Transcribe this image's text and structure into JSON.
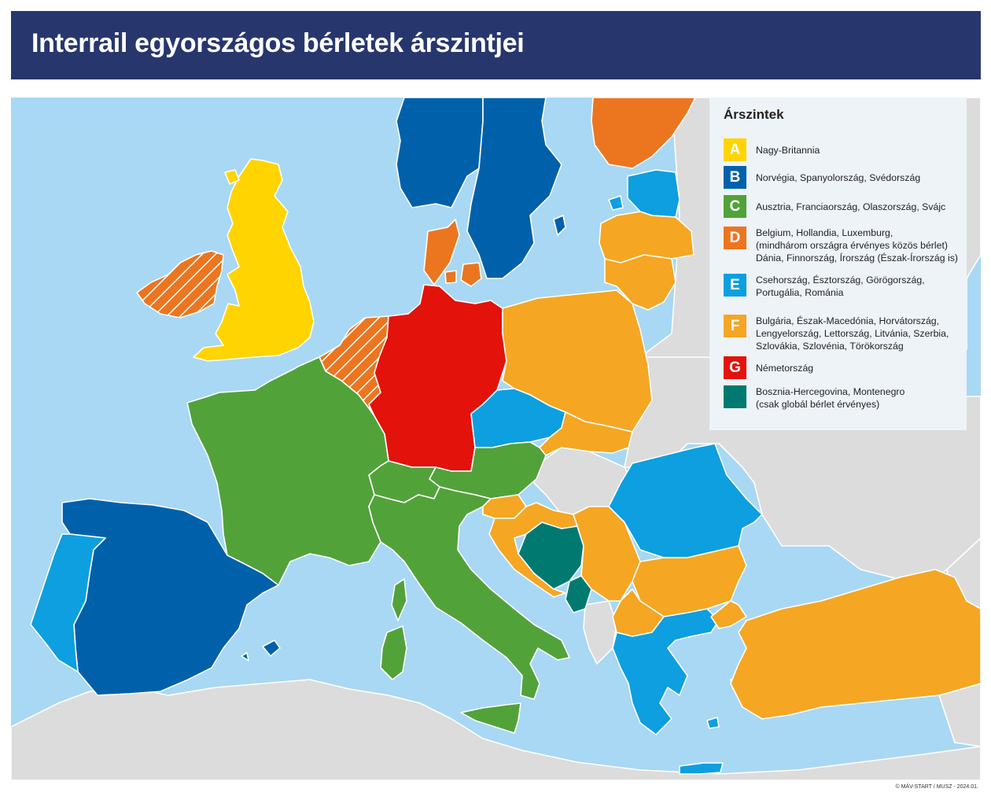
{
  "title": "Interrail egyországos bérletek árszintjei",
  "colors": {
    "sea": "#a8d8f4",
    "land_other": "#dcdcdc",
    "title_bg": "#27376e",
    "A": "#ffd400",
    "B": "#0061aa",
    "C": "#52a23a",
    "D": "#ec7520",
    "E": "#0d9fdf",
    "F": "#f5a623",
    "G": "#e3120b",
    "H": "#007a70"
  },
  "legend": {
    "heading": "Árszintek",
    "items": [
      {
        "code": "A",
        "lines": [
          "Nagy-Britannia"
        ]
      },
      {
        "code": "B",
        "lines": [
          "Norvégia, Spanyolország, Svédország"
        ]
      },
      {
        "code": "C",
        "lines": [
          "Ausztria, Franciaország, Olaszország, Svájc"
        ]
      },
      {
        "code": "D",
        "lines": [
          "Belgium, Hollandia, Luxemburg,",
          "(mindhárom országra érvényes közös bérlet)",
          "Dánia, Finnország, Írország (Észak-Írország is)"
        ]
      },
      {
        "code": "E",
        "lines": [
          "Csehország, Észtország, Görögország,",
          "Portugália, Románia"
        ]
      },
      {
        "code": "F",
        "lines": [
          "Bulgária, Észak-Macedónia, Horvátország,",
          "Lengyelország, Lettország, Litvánia, Szerbia,",
          "Szlovákia, Szlovénia, Törökország"
        ]
      },
      {
        "code": "G",
        "lines": [
          "Németország"
        ]
      },
      {
        "code": "",
        "lines": [
          "Bosznia-Hercegovina, Montenegro",
          "(csak globál bérlet érvényes)"
        ]
      }
    ]
  },
  "copyright": "© MÁV-START / MUSZ - 2024.01."
}
